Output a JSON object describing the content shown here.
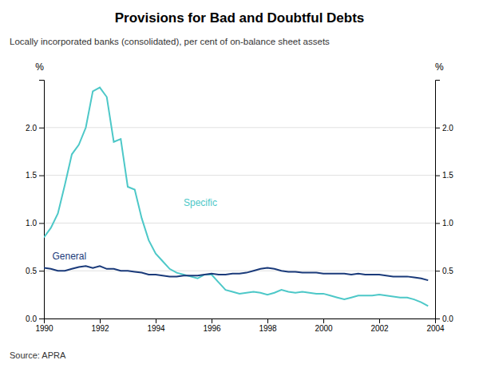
{
  "chart_data": {
    "type": "line",
    "title": "Provisions for Bad and Doubtful Debts",
    "subtitle": "Locally incorporated banks (consolidated), per cent of on-balance sheet assets",
    "source": "Source: APRA",
    "ylabel": "%",
    "y2label": "%",
    "grid": true,
    "xlim": [
      1990,
      2004
    ],
    "xticks": [
      1990,
      1992,
      1994,
      1996,
      1998,
      2000,
      2002,
      2004
    ],
    "ylim": [
      0,
      2.5
    ],
    "yticks": [
      {
        "value": 0.0,
        "label": "0.0"
      },
      0.5,
      {
        "value": 1.0,
        "label": "1.0"
      },
      1.5,
      {
        "value": 2.0,
        "label": "2.0"
      }
    ],
    "y2lim": [
      0,
      2.5
    ],
    "y2ticks": [
      {
        "value": 0.0,
        "label": "0.0"
      },
      0.5,
      {
        "value": 1.0,
        "label": "1.0"
      },
      1.5,
      {
        "value": 2.0,
        "label": "2.0"
      }
    ],
    "x": [
      1990.0,
      1990.25,
      1990.5,
      1990.75,
      1991.0,
      1991.25,
      1991.5,
      1991.75,
      1992.0,
      1992.25,
      1992.5,
      1992.75,
      1993.0,
      1993.25,
      1993.5,
      1993.75,
      1994.0,
      1994.25,
      1994.5,
      1994.75,
      1995.0,
      1995.25,
      1995.5,
      1995.75,
      1996.0,
      1996.25,
      1996.5,
      1996.75,
      1997.0,
      1997.25,
      1997.5,
      1997.75,
      1998.0,
      1998.25,
      1998.5,
      1998.75,
      1999.0,
      1999.25,
      1999.5,
      1999.75,
      2000.0,
      2000.25,
      2000.5,
      2000.75,
      2001.0,
      2001.25,
      2001.5,
      2001.75,
      2002.0,
      2002.25,
      2002.5,
      2002.75,
      2003.0,
      2003.25,
      2003.5,
      2003.75
    ],
    "series": [
      {
        "name": "Specific",
        "color": "#4DC8C8",
        "label_x": 1995.0,
        "label_y": 1.18,
        "values": [
          0.85,
          0.95,
          1.1,
          1.4,
          1.72,
          1.82,
          2.0,
          2.38,
          2.42,
          2.32,
          1.85,
          1.88,
          1.38,
          1.35,
          1.05,
          0.82,
          0.68,
          0.6,
          0.52,
          0.48,
          0.46,
          0.44,
          0.42,
          0.46,
          0.46,
          0.38,
          0.3,
          0.28,
          0.26,
          0.27,
          0.28,
          0.27,
          0.25,
          0.27,
          0.3,
          0.28,
          0.27,
          0.28,
          0.27,
          0.26,
          0.26,
          0.24,
          0.22,
          0.2,
          0.22,
          0.24,
          0.24,
          0.24,
          0.25,
          0.24,
          0.23,
          0.22,
          0.22,
          0.2,
          0.17,
          0.13
        ]
      },
      {
        "name": "General",
        "color": "#1A3A7A",
        "label_x": 1990.3,
        "label_y": 0.615,
        "values": [
          0.53,
          0.52,
          0.5,
          0.5,
          0.52,
          0.54,
          0.55,
          0.53,
          0.55,
          0.52,
          0.52,
          0.5,
          0.5,
          0.49,
          0.48,
          0.46,
          0.46,
          0.45,
          0.44,
          0.44,
          0.45,
          0.45,
          0.45,
          0.46,
          0.47,
          0.46,
          0.46,
          0.47,
          0.47,
          0.48,
          0.5,
          0.52,
          0.53,
          0.52,
          0.5,
          0.49,
          0.49,
          0.48,
          0.48,
          0.48,
          0.47,
          0.47,
          0.47,
          0.47,
          0.46,
          0.47,
          0.46,
          0.46,
          0.46,
          0.45,
          0.44,
          0.44,
          0.44,
          0.43,
          0.42,
          0.4
        ]
      }
    ]
  }
}
